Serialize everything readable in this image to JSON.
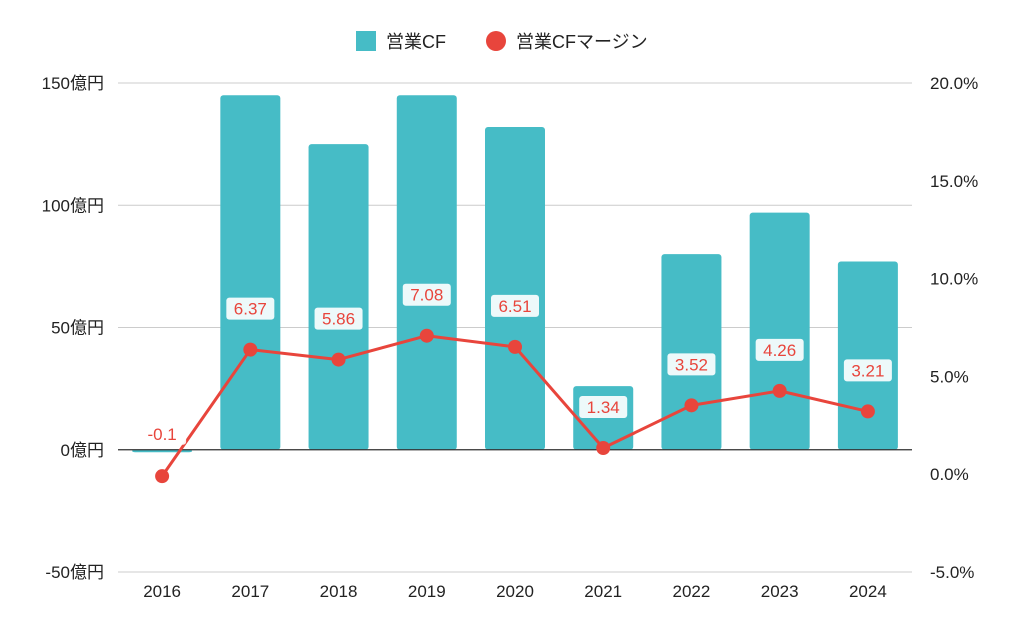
{
  "chart_data": {
    "type": "bar",
    "categories": [
      "2016",
      "2017",
      "2018",
      "2019",
      "2020",
      "2021",
      "2022",
      "2023",
      "2024"
    ],
    "series": [
      {
        "name": "営業CF",
        "type": "bar",
        "axis": "left",
        "color": "#46bcc6",
        "values": [
          -1,
          145,
          125,
          145,
          132,
          26,
          80,
          97,
          77
        ]
      },
      {
        "name": "営業CFマージン",
        "type": "line",
        "axis": "right",
        "color": "#e8453c",
        "values": [
          -0.1,
          6.37,
          5.86,
          7.08,
          6.51,
          1.34,
          3.52,
          4.26,
          3.21
        ],
        "data_labels": [
          "-0.1",
          "6.37",
          "5.86",
          "7.08",
          "6.51",
          "1.34",
          "3.52",
          "4.26",
          "3.21"
        ]
      }
    ],
    "left_axis": {
      "ylim": [
        -50,
        150
      ],
      "ticks": [
        150,
        100,
        50,
        0,
        -50
      ],
      "tick_labels": [
        "150億円",
        "100億円",
        "50億円",
        "0億円",
        "-50億円"
      ]
    },
    "right_axis": {
      "ylim": [
        -5,
        20
      ],
      "ticks": [
        20,
        15,
        10,
        5,
        0,
        -5
      ],
      "tick_labels": [
        "20.0%",
        "15.0%",
        "10.0%",
        "5.0%",
        "0.0%",
        "-5.0%"
      ]
    },
    "legend_position": "top",
    "grid": true
  }
}
